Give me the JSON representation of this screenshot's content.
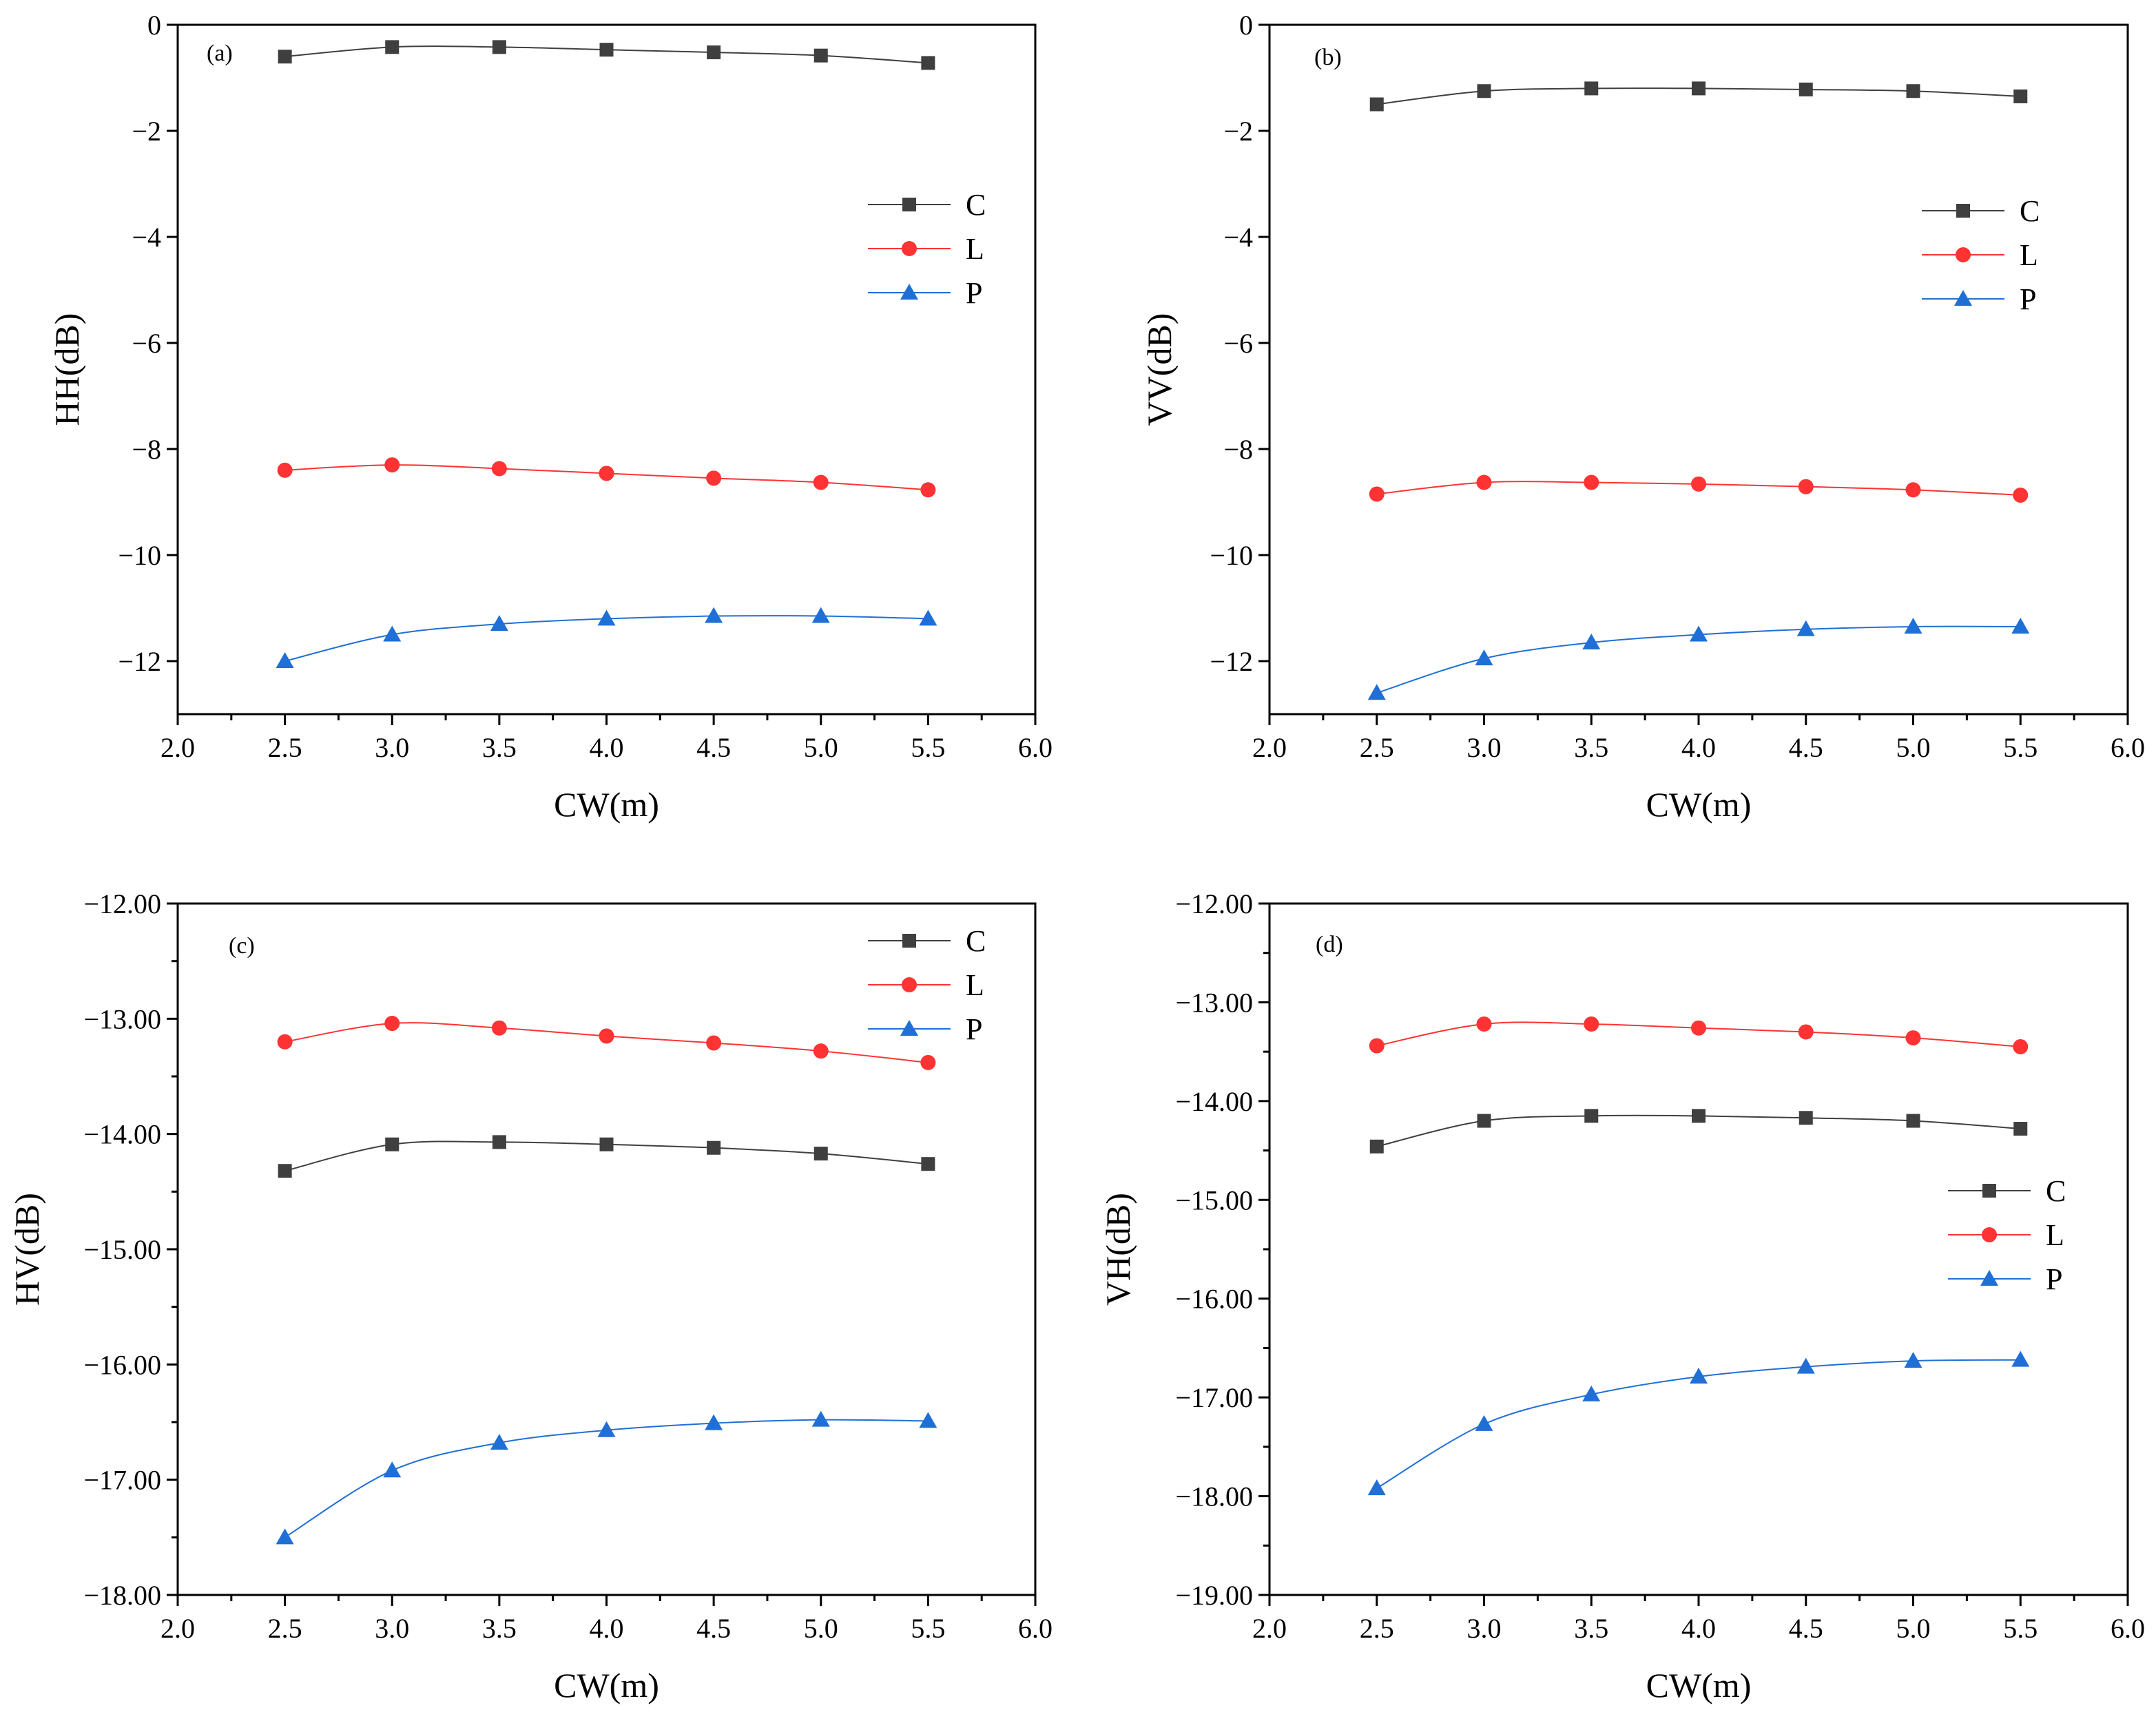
{
  "chart_data": [
    {
      "type": "line",
      "panel": "(a)",
      "xlabel": "CW(m)",
      "ylabel": "HH(dB)",
      "xlim": [
        2.0,
        6.0
      ],
      "ylim": [
        -13,
        0
      ],
      "x_ticks": [
        "2.0",
        "2.5",
        "3.0",
        "3.5",
        "4.0",
        "4.5",
        "5.0",
        "5.5",
        "6.0"
      ],
      "y_ticks": [
        {
          "value": 0,
          "label": "0"
        },
        {
          "value": -2,
          "label": "−2"
        },
        {
          "value": -4,
          "label": "−4"
        },
        {
          "value": -6,
          "label": "−6"
        },
        {
          "value": -8,
          "label": "−8"
        },
        {
          "value": -10,
          "label": "−10"
        },
        {
          "value": -12,
          "label": "−12"
        }
      ],
      "legend_position": "right-upper",
      "x": [
        2.5,
        3.0,
        3.5,
        4.0,
        4.5,
        5.0,
        5.5
      ],
      "series": [
        {
          "name": "C",
          "marker": "square",
          "color": "#3f3f3f",
          "values": [
            -0.6,
            -0.42,
            -0.42,
            -0.47,
            -0.52,
            -0.58,
            -0.72
          ]
        },
        {
          "name": "L",
          "marker": "circle",
          "color": "#ff3333",
          "values": [
            -8.4,
            -8.3,
            -8.37,
            -8.46,
            -8.55,
            -8.63,
            -8.77
          ]
        },
        {
          "name": "P",
          "marker": "triangle",
          "color": "#1f6fd6",
          "values": [
            -12.0,
            -11.5,
            -11.3,
            -11.2,
            -11.15,
            -11.15,
            -11.2
          ]
        }
      ]
    },
    {
      "type": "line",
      "panel": "(b)",
      "xlabel": "CW(m)",
      "ylabel": "VV(dB)",
      "xlim": [
        2.0,
        6.0
      ],
      "ylim": [
        -13,
        0
      ],
      "x_ticks": [
        "2.0",
        "2.5",
        "3.0",
        "3.5",
        "4.0",
        "4.5",
        "5.0",
        "5.5",
        "6.0"
      ],
      "y_ticks": [
        {
          "value": 0,
          "label": "0"
        },
        {
          "value": -2,
          "label": "−2"
        },
        {
          "value": -4,
          "label": "−4"
        },
        {
          "value": -6,
          "label": "−6"
        },
        {
          "value": -8,
          "label": "−8"
        },
        {
          "value": -10,
          "label": "−10"
        },
        {
          "value": -12,
          "label": "−12"
        }
      ],
      "legend_position": "right-upper",
      "x": [
        2.5,
        3.0,
        3.5,
        4.0,
        4.5,
        5.0,
        5.5
      ],
      "series": [
        {
          "name": "C",
          "marker": "square",
          "color": "#3f3f3f",
          "values": [
            -1.5,
            -1.25,
            -1.2,
            -1.2,
            -1.22,
            -1.25,
            -1.35
          ]
        },
        {
          "name": "L",
          "marker": "circle",
          "color": "#ff3333",
          "values": [
            -8.85,
            -8.63,
            -8.63,
            -8.66,
            -8.71,
            -8.77,
            -8.87
          ]
        },
        {
          "name": "P",
          "marker": "triangle",
          "color": "#1f6fd6",
          "values": [
            -12.6,
            -11.95,
            -11.65,
            -11.5,
            -11.4,
            -11.35,
            -11.35
          ]
        }
      ]
    },
    {
      "type": "line",
      "panel": "(c)",
      "xlabel": "CW(m)",
      "ylabel": "HV(dB)",
      "xlim": [
        2.0,
        6.0
      ],
      "ylim": [
        -18.0,
        -12.0
      ],
      "x_ticks": [
        "2.0",
        "2.5",
        "3.0",
        "3.5",
        "4.0",
        "4.5",
        "5.0",
        "5.5",
        "6.0"
      ],
      "y_ticks": [
        {
          "value": -12,
          "label": "−12.00"
        },
        {
          "value": -13,
          "label": "−13.00"
        },
        {
          "value": -14,
          "label": "−14.00"
        },
        {
          "value": -15,
          "label": "−15.00"
        },
        {
          "value": -16,
          "label": "−16.00"
        },
        {
          "value": -17,
          "label": "−17.00"
        },
        {
          "value": -18,
          "label": "−18.00"
        }
      ],
      "legend_position": "top-right",
      "x": [
        2.5,
        3.0,
        3.5,
        4.0,
        4.5,
        5.0,
        5.5
      ],
      "series": [
        {
          "name": "C",
          "marker": "square",
          "color": "#3f3f3f",
          "values": [
            -14.32,
            -14.09,
            -14.07,
            -14.09,
            -14.12,
            -14.17,
            -14.26
          ]
        },
        {
          "name": "L",
          "marker": "circle",
          "color": "#ff3333",
          "values": [
            -13.2,
            -13.04,
            -13.08,
            -13.15,
            -13.21,
            -13.28,
            -13.38
          ]
        },
        {
          "name": "P",
          "marker": "triangle",
          "color": "#1f6fd6",
          "values": [
            -17.5,
            -16.92,
            -16.68,
            -16.57,
            -16.51,
            -16.48,
            -16.49
          ]
        }
      ]
    },
    {
      "type": "line",
      "panel": "(d)",
      "xlabel": "CW(m)",
      "ylabel": "VH(dB)",
      "xlim": [
        2.0,
        6.0
      ],
      "ylim": [
        -19.0,
        -12.0
      ],
      "x_ticks": [
        "2.0",
        "2.5",
        "3.0",
        "3.5",
        "4.0",
        "4.5",
        "5.0",
        "5.5",
        "6.0"
      ],
      "y_ticks": [
        {
          "value": -12,
          "label": "−12.00"
        },
        {
          "value": -13,
          "label": "−13.00"
        },
        {
          "value": -14,
          "label": "−14.00"
        },
        {
          "value": -15,
          "label": "−15.00"
        },
        {
          "value": -16,
          "label": "−16.00"
        },
        {
          "value": -17,
          "label": "−17.00"
        },
        {
          "value": -18,
          "label": "−18.00"
        },
        {
          "value": -19,
          "label": "−19.00"
        }
      ],
      "legend_position": "right-middle",
      "x": [
        2.5,
        3.0,
        3.5,
        4.0,
        4.5,
        5.0,
        5.5
      ],
      "series": [
        {
          "name": "C",
          "marker": "square",
          "color": "#3f3f3f",
          "values": [
            -14.46,
            -14.2,
            -14.15,
            -14.15,
            -14.17,
            -14.2,
            -14.28
          ]
        },
        {
          "name": "L",
          "marker": "circle",
          "color": "#ff3333",
          "values": [
            -13.44,
            -13.22,
            -13.22,
            -13.26,
            -13.3,
            -13.36,
            -13.45
          ]
        },
        {
          "name": "P",
          "marker": "triangle",
          "color": "#1f6fd6",
          "values": [
            -17.92,
            -17.27,
            -16.97,
            -16.79,
            -16.69,
            -16.63,
            -16.62
          ]
        }
      ]
    }
  ]
}
